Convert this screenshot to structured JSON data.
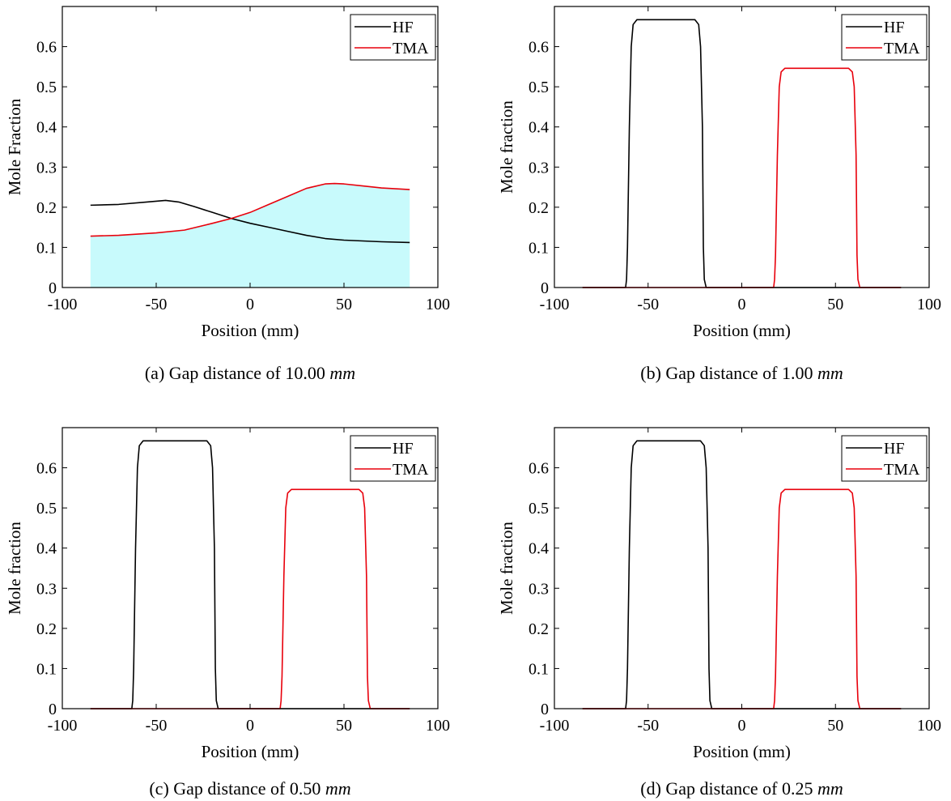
{
  "chart_data": [
    {
      "type": "line",
      "panel": "a",
      "caption": "(a) Gap distance of 10.00 mm",
      "caption_text": "(a) Gap distance of 10.00 ",
      "caption_unit": "mm",
      "xlabel": "Position (mm)",
      "ylabel": "Mole Fraction",
      "xlim": [
        -100,
        100
      ],
      "ylim": [
        0,
        0.7
      ],
      "xticks": [
        "-100",
        "-50",
        "0",
        "50",
        "100"
      ],
      "yticks": [
        "0",
        "0.1",
        "0.2",
        "0.3",
        "0.4",
        "0.5",
        "0.6"
      ],
      "legend_position": "top-right",
      "fill": {
        "under_series": "TMA",
        "color": "#c8fafc"
      },
      "series": [
        {
          "name": "HF",
          "color": "#000000",
          "x": [
            -85,
            -70,
            -55,
            -45,
            -38,
            -30,
            -20,
            -10,
            0,
            10,
            20,
            30,
            40,
            50,
            60,
            70,
            85
          ],
          "y": [
            0.205,
            0.207,
            0.213,
            0.217,
            0.213,
            0.202,
            0.187,
            0.172,
            0.16,
            0.15,
            0.14,
            0.13,
            0.122,
            0.118,
            0.116,
            0.114,
            0.112
          ]
        },
        {
          "name": "TMA",
          "color": "#e8000b",
          "x": [
            -85,
            -70,
            -50,
            -35,
            -20,
            -10,
            0,
            10,
            20,
            30,
            40,
            45,
            50,
            60,
            70,
            85
          ],
          "y": [
            0.128,
            0.13,
            0.136,
            0.143,
            0.16,
            0.172,
            0.187,
            0.207,
            0.227,
            0.247,
            0.258,
            0.259,
            0.258,
            0.253,
            0.248,
            0.244
          ]
        }
      ]
    },
    {
      "type": "line",
      "panel": "b",
      "caption": "(b) Gap distance of 1.00 mm",
      "caption_text": "(b) Gap distance of 1.00 ",
      "caption_unit": "mm",
      "xlabel": "Position (mm)",
      "ylabel": "Mole fraction",
      "xlim": [
        -100,
        100
      ],
      "ylim": [
        0,
        0.7
      ],
      "xticks": [
        "-100",
        "-50",
        "0",
        "50",
        "100"
      ],
      "yticks": [
        "0",
        "0.1",
        "0.2",
        "0.3",
        "0.4",
        "0.5",
        "0.6"
      ],
      "legend_position": "top-right",
      "series": [
        {
          "name": "HF",
          "color": "#000000",
          "x": [
            -85,
            -62,
            -61.5,
            -61,
            -60,
            -59,
            -58,
            -56,
            -25,
            -23,
            -22,
            -21,
            -20.5,
            -20,
            -19,
            85
          ],
          "y": [
            0,
            0,
            0.02,
            0.1,
            0.4,
            0.6,
            0.655,
            0.667,
            0.667,
            0.655,
            0.6,
            0.4,
            0.1,
            0.02,
            0,
            0
          ]
        },
        {
          "name": "TMA",
          "color": "#e8000b",
          "x": [
            -85,
            17,
            17.5,
            18,
            19,
            20,
            21,
            23,
            57,
            59,
            60,
            61,
            61.5,
            62,
            63,
            85
          ],
          "y": [
            0,
            0,
            0.02,
            0.08,
            0.33,
            0.5,
            0.537,
            0.546,
            0.546,
            0.537,
            0.5,
            0.33,
            0.08,
            0.02,
            0,
            0
          ]
        }
      ]
    },
    {
      "type": "line",
      "panel": "c",
      "caption": "(c) Gap distance of 0.50 mm",
      "caption_text": "(c) Gap distance of 0.50 ",
      "caption_unit": "mm",
      "xlabel": "Position (mm)",
      "ylabel": "Mole fraction",
      "xlim": [
        -100,
        100
      ],
      "ylim": [
        0,
        0.7
      ],
      "xticks": [
        "-100",
        "-50",
        "0",
        "50",
        "100"
      ],
      "yticks": [
        "0",
        "0.1",
        "0.2",
        "0.3",
        "0.4",
        "0.5",
        "0.6"
      ],
      "legend_position": "top-right",
      "series": [
        {
          "name": "HF",
          "color": "#000000",
          "x": [
            -85,
            -63,
            -62.5,
            -62,
            -61,
            -60,
            -59,
            -57,
            -23,
            -21,
            -20,
            -19,
            -18.5,
            -18,
            -17,
            85
          ],
          "y": [
            0,
            0,
            0.02,
            0.1,
            0.4,
            0.6,
            0.655,
            0.667,
            0.667,
            0.655,
            0.6,
            0.4,
            0.1,
            0.02,
            0,
            0
          ]
        },
        {
          "name": "TMA",
          "color": "#e8000b",
          "x": [
            -85,
            16,
            16.5,
            17,
            18,
            19,
            20,
            22,
            58,
            60,
            61,
            62,
            62.5,
            63,
            64,
            85
          ],
          "y": [
            0,
            0,
            0.02,
            0.08,
            0.33,
            0.5,
            0.537,
            0.546,
            0.546,
            0.537,
            0.5,
            0.33,
            0.08,
            0.02,
            0,
            0
          ]
        }
      ]
    },
    {
      "type": "line",
      "panel": "d",
      "caption": "(d) Gap distance of 0.25 mm",
      "caption_text": "(d) Gap distance of 0.25 ",
      "caption_unit": "mm",
      "xlabel": "Position (mm)",
      "ylabel": "Mole fraction",
      "xlim": [
        -100,
        100
      ],
      "ylim": [
        0,
        0.7
      ],
      "xticks": [
        "-100",
        "-50",
        "0",
        "50",
        "100"
      ],
      "yticks": [
        "0",
        "0.1",
        "0.2",
        "0.3",
        "0.4",
        "0.5",
        "0.6"
      ],
      "legend_position": "top-right",
      "series": [
        {
          "name": "HF",
          "color": "#000000",
          "x": [
            -85,
            -62,
            -61.5,
            -61,
            -60,
            -59,
            -58,
            -56,
            -22,
            -20,
            -19,
            -18,
            -17.5,
            -17,
            -16,
            85
          ],
          "y": [
            0,
            0,
            0.02,
            0.1,
            0.4,
            0.6,
            0.655,
            0.667,
            0.667,
            0.655,
            0.6,
            0.4,
            0.1,
            0.02,
            0,
            0
          ]
        },
        {
          "name": "TMA",
          "color": "#e8000b",
          "x": [
            -85,
            17,
            17.5,
            18,
            19,
            20,
            21,
            23,
            57,
            59,
            60,
            61,
            61.5,
            62,
            63,
            85
          ],
          "y": [
            0,
            0,
            0.02,
            0.08,
            0.33,
            0.5,
            0.537,
            0.546,
            0.546,
            0.537,
            0.5,
            0.33,
            0.08,
            0.02,
            0,
            0
          ]
        }
      ]
    }
  ]
}
